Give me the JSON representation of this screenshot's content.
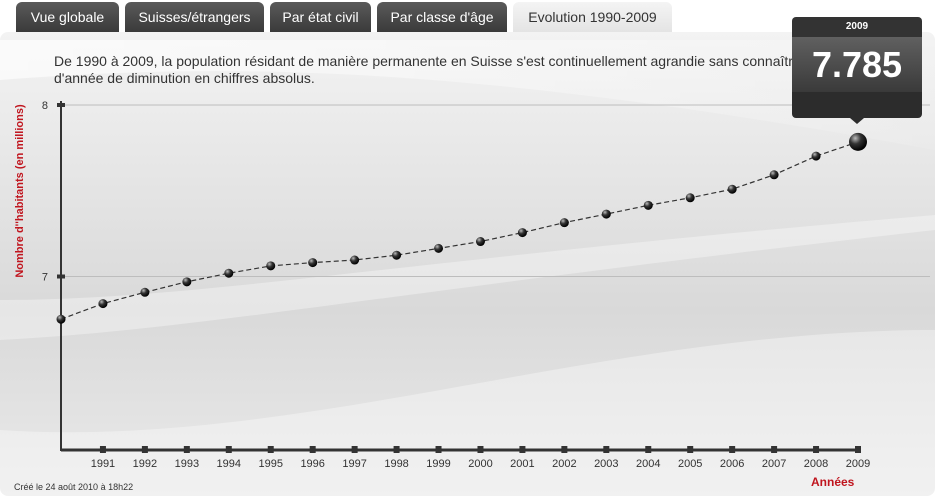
{
  "tabs": [
    {
      "label": "Vue globale",
      "active": false
    },
    {
      "label": "Suisses/étrangers",
      "active": false
    },
    {
      "label": "Par état civil",
      "active": false
    },
    {
      "label": "Par classe d'âge",
      "active": false
    },
    {
      "label": "Evolution 1990-2009",
      "active": true
    }
  ],
  "intro": "De 1990 à 2009, la population résidant de manière permanente en Suisse s'est continuellement agrandie sans connaître d'année de diminution en chiffres absolus.",
  "tooltip": {
    "year": "2009",
    "value": "7.785"
  },
  "footnote": "Créé le 24 août 2010 à 18h22",
  "colors": {
    "accent_red": "#c0151e",
    "tab_dark": "#444444",
    "line": "#333333"
  },
  "chart_data": {
    "type": "line",
    "title": "",
    "xlabel": "Années",
    "ylabel": "Nombre d''habitants (en millions)",
    "x": [
      1990,
      1991,
      1992,
      1993,
      1994,
      1995,
      1996,
      1997,
      1998,
      1999,
      2000,
      2001,
      2002,
      2003,
      2004,
      2005,
      2006,
      2007,
      2008,
      2009
    ],
    "x_tick_labels": [
      "1991",
      "1992",
      "1993",
      "1994",
      "1995",
      "1996",
      "1997",
      "1998",
      "1999",
      "2000",
      "2001",
      "2002",
      "2003",
      "2004",
      "2005",
      "2006",
      "2007",
      "2008",
      "2009"
    ],
    "y_tick_labels": [
      "8",
      "7"
    ],
    "y_ticks": [
      8,
      7
    ],
    "ylim": [
      6,
      8
    ],
    "xlim": [
      1990,
      2009
    ],
    "series": [
      {
        "values": [
          6.751,
          6.842,
          6.908,
          6.969,
          7.019,
          7.062,
          7.081,
          7.096,
          7.124,
          7.164,
          7.204,
          7.256,
          7.314,
          7.364,
          7.415,
          7.459,
          7.509,
          7.593,
          7.702,
          7.785
        ]
      }
    ],
    "grid": "horizontal",
    "legend": "none"
  }
}
